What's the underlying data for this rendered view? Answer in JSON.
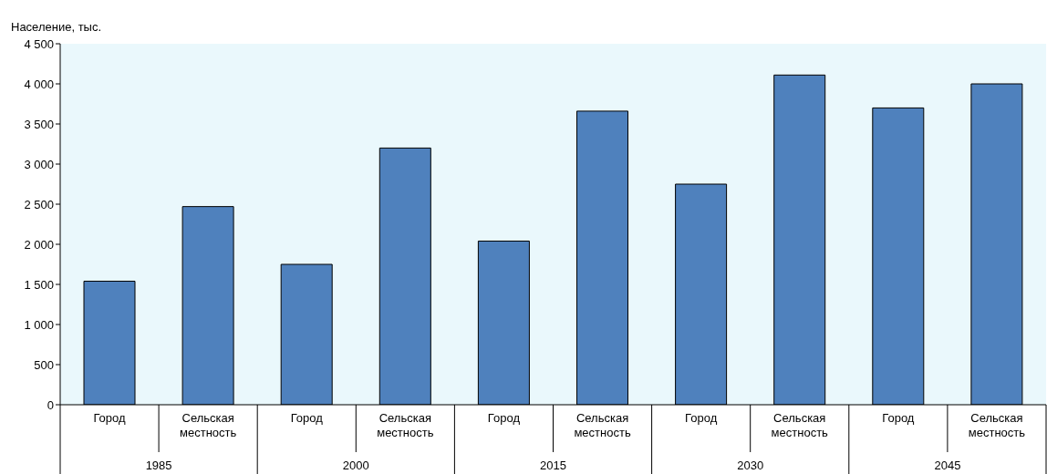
{
  "chart_data": {
    "type": "bar",
    "ylabel": "Население, тыс.",
    "categories": [
      "Город",
      "Сельская местность",
      "Город",
      "Сельская местность",
      "Город",
      "Сельская местность",
      "Город",
      "Сельская местность",
      "Город",
      "Сельская местность"
    ],
    "values": [
      1540,
      2470,
      1750,
      3200,
      2040,
      3660,
      2750,
      4110,
      3700,
      4000
    ],
    "color": "#4f81bd",
    "ylim": [
      0,
      4500
    ],
    "yticks": [
      0,
      500,
      {
        "value": 1000,
        "label": "1 000"
      },
      {
        "value": 1500,
        "label": "1 500"
      },
      {
        "value": 2000,
        "label": "2 000"
      },
      {
        "value": 2500,
        "label": "2 500"
      },
      {
        "value": 3000,
        "label": "3 000"
      },
      {
        "value": 3500,
        "label": "3 500"
      },
      {
        "value": 4000,
        "label": "4 000"
      },
      {
        "value": 4500,
        "label": "4 500"
      }
    ],
    "annotations": [
      "1985",
      "2000",
      "2015",
      "2030",
      "2045"
    ]
  }
}
